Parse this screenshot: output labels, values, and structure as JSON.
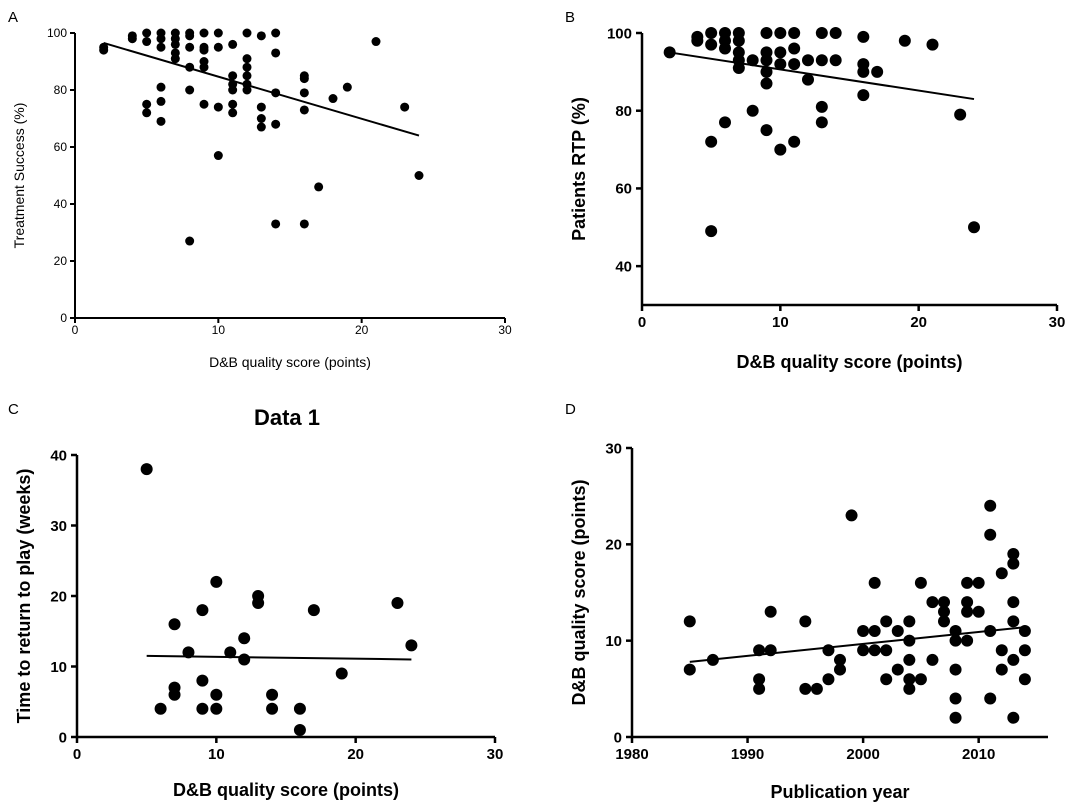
{
  "chart_data": [
    {
      "panel": "A",
      "type": "scatter",
      "title": "",
      "xlabel": "D&B quality score (points)",
      "ylabel": "Treatment Success (%)",
      "xlim": [
        0,
        30
      ],
      "ylim": [
        0,
        100
      ],
      "xticks": [
        0,
        10,
        20,
        30
      ],
      "yticks": [
        0,
        20,
        40,
        60,
        80,
        100
      ],
      "regression": {
        "x1": 2,
        "y1": 96.5,
        "x2": 24,
        "y2": 64
      },
      "points": [
        [
          2,
          94
        ],
        [
          2,
          95
        ],
        [
          4,
          98
        ],
        [
          4,
          99
        ],
        [
          5,
          100
        ],
        [
          5,
          97
        ],
        [
          5,
          75
        ],
        [
          5,
          72
        ],
        [
          6,
          100
        ],
        [
          6,
          98
        ],
        [
          6,
          95
        ],
        [
          6,
          81
        ],
        [
          6,
          76
        ],
        [
          6,
          69
        ],
        [
          7,
          100
        ],
        [
          7,
          98
        ],
        [
          7,
          96
        ],
        [
          7,
          93
        ],
        [
          7,
          91
        ],
        [
          8,
          100
        ],
        [
          8,
          99
        ],
        [
          8,
          95
        ],
        [
          8,
          88
        ],
        [
          8,
          80
        ],
        [
          8,
          27
        ],
        [
          9,
          100
        ],
        [
          9,
          95
        ],
        [
          9,
          94
        ],
        [
          9,
          90
        ],
        [
          9,
          88
        ],
        [
          9,
          75
        ],
        [
          10,
          100
        ],
        [
          10,
          95
        ],
        [
          10,
          74
        ],
        [
          10,
          57
        ],
        [
          11,
          96
        ],
        [
          11,
          85
        ],
        [
          11,
          82
        ],
        [
          11,
          80
        ],
        [
          11,
          75
        ],
        [
          11,
          72
        ],
        [
          12,
          100
        ],
        [
          12,
          91
        ],
        [
          12,
          88
        ],
        [
          12,
          85
        ],
        [
          12,
          82
        ],
        [
          12,
          80
        ],
        [
          13,
          99
        ],
        [
          13,
          74
        ],
        [
          13,
          70
        ],
        [
          13,
          67
        ],
        [
          14,
          100
        ],
        [
          14,
          93
        ],
        [
          14,
          79
        ],
        [
          14,
          68
        ],
        [
          14,
          33
        ],
        [
          16,
          85
        ],
        [
          16,
          84
        ],
        [
          16,
          79
        ],
        [
          16,
          73
        ],
        [
          16,
          33
        ],
        [
          17,
          46
        ],
        [
          18,
          77
        ],
        [
          19,
          81
        ],
        [
          21,
          97
        ],
        [
          23,
          74
        ],
        [
          24,
          50
        ]
      ]
    },
    {
      "panel": "B",
      "type": "scatter",
      "title": "",
      "xlabel": "D&B quality score (points)",
      "ylabel": "Patients RTP (%)",
      "xlim": [
        0,
        30
      ],
      "ylim": [
        30,
        100
      ],
      "xticks": [
        0,
        10,
        20,
        30
      ],
      "yticks": [
        40,
        60,
        80,
        100
      ],
      "regression": {
        "x1": 2,
        "y1": 95,
        "x2": 24,
        "y2": 83
      },
      "points": [
        [
          2,
          95
        ],
        [
          4,
          99
        ],
        [
          4,
          98
        ],
        [
          5,
          100
        ],
        [
          5,
          97
        ],
        [
          5,
          72
        ],
        [
          5,
          49
        ],
        [
          6,
          100
        ],
        [
          6,
          98
        ],
        [
          6,
          96
        ],
        [
          6,
          77
        ],
        [
          7,
          100
        ],
        [
          7,
          98
        ],
        [
          7,
          95
        ],
        [
          7,
          93
        ],
        [
          7,
          91
        ],
        [
          8,
          93
        ],
        [
          8,
          80
        ],
        [
          9,
          100
        ],
        [
          9,
          95
        ],
        [
          9,
          93
        ],
        [
          9,
          90
        ],
        [
          9,
          87
        ],
        [
          9,
          75
        ],
        [
          10,
          100
        ],
        [
          10,
          95
        ],
        [
          10,
          92
        ],
        [
          10,
          70
        ],
        [
          11,
          100
        ],
        [
          11,
          96
        ],
        [
          11,
          92
        ],
        [
          11,
          72
        ],
        [
          12,
          93
        ],
        [
          12,
          88
        ],
        [
          13,
          100
        ],
        [
          13,
          93
        ],
        [
          13,
          81
        ],
        [
          13,
          77
        ],
        [
          14,
          100
        ],
        [
          14,
          93
        ],
        [
          16,
          99
        ],
        [
          16,
          92
        ],
        [
          16,
          90
        ],
        [
          16,
          84
        ],
        [
          17,
          90
        ],
        [
          19,
          98
        ],
        [
          21,
          97
        ],
        [
          23,
          79
        ],
        [
          24,
          50
        ]
      ]
    },
    {
      "panel": "C",
      "type": "scatter",
      "title": "Data 1",
      "xlabel": "D&B quality score (points)",
      "ylabel": "Time to return to play (weeks)",
      "xlim": [
        0,
        30
      ],
      "ylim": [
        0,
        40
      ],
      "xticks": [
        0,
        10,
        20,
        30
      ],
      "yticks": [
        0,
        10,
        20,
        30,
        40
      ],
      "regression": {
        "x1": 5,
        "y1": 11.5,
        "x2": 24,
        "y2": 11.0
      },
      "points": [
        [
          5,
          38
        ],
        [
          6,
          4
        ],
        [
          7,
          16
        ],
        [
          7,
          7
        ],
        [
          7,
          6
        ],
        [
          8,
          12
        ],
        [
          9,
          18
        ],
        [
          9,
          8
        ],
        [
          9,
          4
        ],
        [
          10,
          22
        ],
        [
          10,
          6
        ],
        [
          10,
          4
        ],
        [
          11,
          12
        ],
        [
          12,
          14
        ],
        [
          12,
          11
        ],
        [
          13,
          20
        ],
        [
          13,
          19
        ],
        [
          14,
          6
        ],
        [
          14,
          4
        ],
        [
          16,
          4
        ],
        [
          16,
          1
        ],
        [
          17,
          18
        ],
        [
          19,
          9
        ],
        [
          23,
          19
        ],
        [
          24,
          13
        ]
      ]
    },
    {
      "panel": "D",
      "type": "scatter",
      "title": "",
      "xlabel": "Publication year",
      "ylabel": "D&B quality score (points)",
      "xlim": [
        1980,
        2016
      ],
      "ylim": [
        0,
        30
      ],
      "xticks": [
        1980,
        1990,
        2000,
        2010
      ],
      "yticks": [
        0,
        10,
        20,
        30
      ],
      "regression": {
        "x1": 1985,
        "y1": 7.8,
        "x2": 2014,
        "y2": 11.4
      },
      "points": [
        [
          1985,
          12
        ],
        [
          1985,
          7
        ],
        [
          1987,
          8
        ],
        [
          1991,
          9
        ],
        [
          1991,
          6
        ],
        [
          1991,
          5
        ],
        [
          1992,
          13
        ],
        [
          1992,
          9
        ],
        [
          1995,
          12
        ],
        [
          1995,
          5
        ],
        [
          1996,
          5
        ],
        [
          1997,
          9
        ],
        [
          1997,
          6
        ],
        [
          1998,
          8
        ],
        [
          1998,
          7
        ],
        [
          1999,
          23
        ],
        [
          2000,
          11
        ],
        [
          2000,
          9
        ],
        [
          2001,
          16
        ],
        [
          2001,
          11
        ],
        [
          2001,
          9
        ],
        [
          2002,
          12
        ],
        [
          2002,
          9
        ],
        [
          2002,
          6
        ],
        [
          2003,
          11
        ],
        [
          2003,
          7
        ],
        [
          2004,
          12
        ],
        [
          2004,
          10
        ],
        [
          2004,
          8
        ],
        [
          2004,
          6
        ],
        [
          2004,
          5
        ],
        [
          2005,
          16
        ],
        [
          2005,
          6
        ],
        [
          2006,
          14
        ],
        [
          2006,
          8
        ],
        [
          2007,
          14
        ],
        [
          2007,
          13
        ],
        [
          2007,
          12
        ],
        [
          2008,
          11
        ],
        [
          2008,
          10
        ],
        [
          2008,
          7
        ],
        [
          2008,
          4
        ],
        [
          2008,
          2
        ],
        [
          2009,
          16
        ],
        [
          2009,
          14
        ],
        [
          2009,
          13
        ],
        [
          2009,
          10
        ],
        [
          2010,
          16
        ],
        [
          2010,
          13
        ],
        [
          2011,
          24
        ],
        [
          2011,
          21
        ],
        [
          2011,
          11
        ],
        [
          2011,
          4
        ],
        [
          2012,
          17
        ],
        [
          2012,
          9
        ],
        [
          2012,
          7
        ],
        [
          2013,
          19
        ],
        [
          2013,
          18
        ],
        [
          2013,
          14
        ],
        [
          2013,
          12
        ],
        [
          2013,
          8
        ],
        [
          2013,
          2
        ],
        [
          2014,
          11
        ],
        [
          2014,
          9
        ],
        [
          2014,
          6
        ]
      ]
    }
  ]
}
